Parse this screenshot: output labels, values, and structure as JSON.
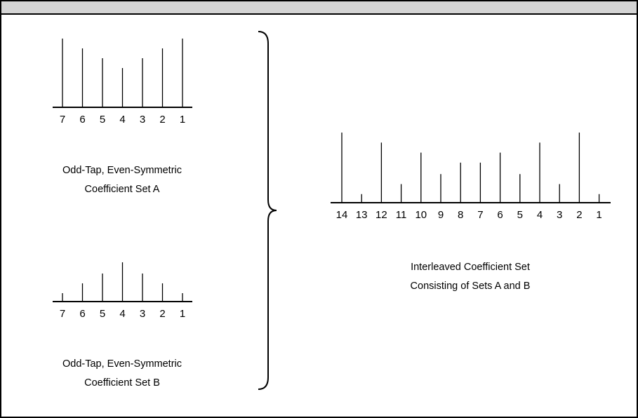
{
  "set_a": {
    "caption_line1": "Odd-Tap, Even-Symmetric",
    "caption_line2": "Coefficient Set A",
    "tap_labels": [
      "7",
      "6",
      "5",
      "4",
      "3",
      "2",
      "1"
    ],
    "tap_values": [
      0.98,
      0.84,
      0.7,
      0.56,
      0.7,
      0.84,
      0.98
    ]
  },
  "set_b": {
    "caption_line1": "Odd-Tap, Even-Symmetric",
    "caption_line2": "Coefficient Set B",
    "tap_labels": [
      "7",
      "6",
      "5",
      "4",
      "3",
      "2",
      "1"
    ],
    "tap_values": [
      0.12,
      0.26,
      0.4,
      0.56,
      0.4,
      0.26,
      0.12
    ]
  },
  "interleaved": {
    "caption_line1": "Interleaved Coefficient Set",
    "caption_line2": "Consisting of Sets A and B",
    "tap_labels": [
      "14",
      "13",
      "12",
      "11",
      "10",
      "9",
      "8",
      "7",
      "6",
      "5",
      "4",
      "3",
      "2",
      "1"
    ],
    "tap_values": [
      0.98,
      0.12,
      0.84,
      0.26,
      0.7,
      0.4,
      0.56,
      0.56,
      0.7,
      0.4,
      0.84,
      0.26,
      0.98,
      0.12
    ]
  },
  "colors": {
    "line": "#000000",
    "header": "#d4d4d4",
    "background": "#ffffff"
  }
}
